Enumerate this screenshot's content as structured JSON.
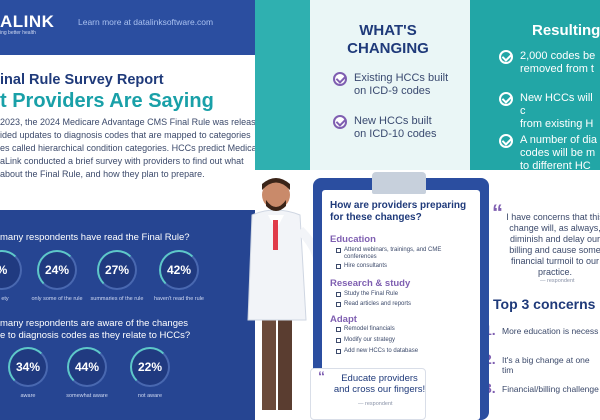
{
  "header": {
    "logo": "ALINK",
    "tagline": "ing better health",
    "link": "Learn more at datalinksoftware.com"
  },
  "report": {
    "title": "inal Rule Survey Report",
    "headline": "t Providers Are Saying",
    "body_lines": [
      "2023, the 2024 Medicare Advantage CMS Final Rule was released",
      "ided updates to diagnosis codes that are mapped to categories",
      "es called  hierarchical condition categories. HCCs predict Medicare",
      "aLink conducted a brief survey with providers to find out what",
      "about the Final Rule, and how they plan to prepare."
    ]
  },
  "question1": {
    "text": "many respondents have read the Final Rule?",
    "stats": [
      {
        "value": "%",
        "caption": "ety"
      },
      {
        "value": "24%",
        "caption": "only some of the rule"
      },
      {
        "value": "27%",
        "caption": "summaries of the rule"
      },
      {
        "value": "42%",
        "caption": "haven't read the rule"
      }
    ]
  },
  "question2": {
    "text_line1": "many respondents are aware of the changes",
    "text_line2": "e to diagnosis codes as they relate to HCCs?",
    "stats": [
      {
        "value": "34%",
        "caption": "aware"
      },
      {
        "value": "44%",
        "caption": "somewhat aware"
      },
      {
        "value": "22%",
        "caption": "not aware"
      }
    ]
  },
  "changing": {
    "heading_line1": "WHAT'S",
    "heading_line2": "CHANGING",
    "items": [
      {
        "line1": "Existing HCCs built",
        "line2": "on ICD-9 codes"
      },
      {
        "line1": "New HCCs built",
        "line2": "on ICD-10 codes"
      }
    ]
  },
  "resulting": {
    "heading": "Resulting",
    "items": [
      {
        "line1": "2,000 codes be",
        "line2": "removed from t"
      },
      {
        "line1": "New HCCs will c",
        "line2": "from existing H"
      },
      {
        "line1": "A number of dia",
        "line2": "codes will be m",
        "line3": "to different HC"
      }
    ]
  },
  "clipboard": {
    "question": "How are providers preparing for these changes?",
    "sections": [
      {
        "title": "Education",
        "items": [
          "Attend webinars, trainings, and CME conferences",
          "Hire consultants"
        ]
      },
      {
        "title": "Research & study",
        "items": [
          "Study the Final Rule",
          "Read articles and reports"
        ]
      },
      {
        "title": "Adapt",
        "items": [
          "Remodel financials",
          "Modify our strategy",
          "Add new HCCs to database"
        ]
      }
    ],
    "bubble_text": "Educate providers and cross our fingers!",
    "bubble_attr": "— respondent"
  },
  "quote": {
    "text": "I have concerns that this change will, as always, diminish and delay our billing and cause some financial turmoil to our practice.",
    "attr": "— respondent"
  },
  "concerns": {
    "heading": "Top 3 concerns",
    "items": [
      {
        "num": "1.",
        "text": "More education is necess"
      },
      {
        "num": "2.",
        "text": "It's a big change at one tim"
      },
      {
        "num": "3.",
        "text": "Financial/billing challenge"
      }
    ]
  },
  "colors": {
    "navy": "#2b4ea0",
    "teal": "#2fb0b0",
    "purple": "#7f5fb1",
    "heading_blue": "#1f3a7a"
  }
}
